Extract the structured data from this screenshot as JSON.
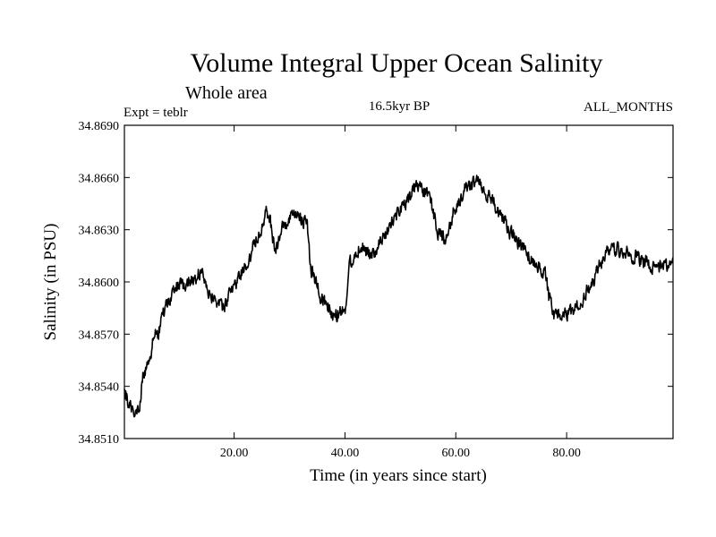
{
  "chart_data": {
    "type": "line",
    "title": "Volume Integral Upper Ocean Salinity",
    "subtitle": "Whole area",
    "header_left": "Expt = teblr",
    "header_center": "16.5kyr BP",
    "header_right": "ALL_MONTHS",
    "xlabel": "Time (in years since start)",
    "ylabel": "Salinity (in PSU)",
    "xlim": [
      0.2,
      99.2
    ],
    "ylim": [
      34.851,
      34.869
    ],
    "x_ticks": [
      20,
      40,
      60,
      80
    ],
    "x_tick_labels": [
      "20.00",
      "40.00",
      "60.00",
      "80.00"
    ],
    "y_ticks": [
      34.851,
      34.854,
      34.857,
      34.86,
      34.863,
      34.866,
      34.869
    ],
    "y_tick_labels": [
      "34.8510",
      "34.8540",
      "34.8570",
      "34.8600",
      "34.8630",
      "34.8660",
      "34.8690"
    ],
    "series": [
      {
        "name": "Salinity",
        "color": "#000000",
        "x": [
          0.2,
          1.5,
          2.5,
          4,
          6,
          8,
          10,
          12,
          14,
          16,
          18,
          20,
          22,
          24,
          26,
          27.5,
          29,
          31,
          33,
          34,
          36,
          38,
          40,
          41,
          43,
          45,
          47,
          49,
          51,
          53,
          55,
          57,
          58,
          60,
          62,
          64,
          66,
          68,
          70,
          72,
          74,
          76,
          77,
          78,
          80,
          82,
          84,
          86,
          88,
          90,
          92,
          94,
          96,
          98,
          99.2
        ],
        "values": [
          34.8535,
          34.8528,
          34.8525,
          34.855,
          34.857,
          34.8588,
          34.8598,
          34.86,
          34.8605,
          34.8592,
          34.8585,
          34.8598,
          34.8608,
          34.8625,
          34.864,
          34.862,
          34.8632,
          34.8638,
          34.8635,
          34.8605,
          34.859,
          34.858,
          34.8585,
          34.8612,
          34.862,
          34.8615,
          34.8625,
          34.8638,
          34.8645,
          34.8655,
          34.865,
          34.8628,
          34.8625,
          34.8642,
          34.8655,
          34.8658,
          34.865,
          34.8638,
          34.8628,
          34.862,
          34.8612,
          34.8605,
          34.859,
          34.858,
          34.8582,
          34.8585,
          34.8595,
          34.861,
          34.862,
          34.8618,
          34.8615,
          34.8612,
          34.8608,
          34.861,
          34.8612
        ],
        "noise_amplitude": 0.00055,
        "samples_per_year": 12
      }
    ]
  }
}
